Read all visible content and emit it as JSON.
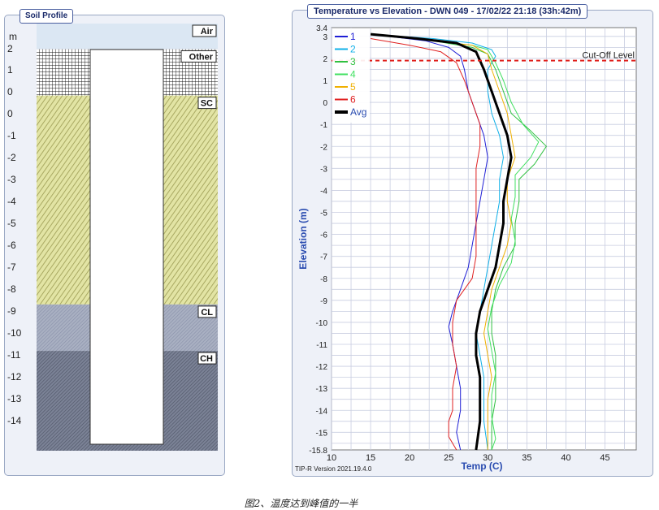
{
  "left_panel": {
    "title": "Soil Profile",
    "unit": "m",
    "layers": [
      {
        "name": "Air",
        "top": 3.4,
        "bottom": 2.3,
        "fill": "air"
      },
      {
        "name": "Other",
        "top": 2.3,
        "bottom": 0.3,
        "fill": "grid"
      },
      {
        "name": "SC",
        "top": 0.3,
        "bottom": -8.7,
        "fill": "sc"
      },
      {
        "name": "CL",
        "top": -8.7,
        "bottom": -10.7,
        "fill": "cl"
      },
      {
        "name": "CH",
        "top": -10.7,
        "bottom": -15.0,
        "fill": "ch"
      }
    ],
    "tick_labels": [
      "2",
      "1",
      "0",
      "0",
      "-1",
      "-2",
      "-3",
      "-4",
      "-5",
      "-6",
      "-7",
      "-8",
      "-9",
      "-10",
      "-11",
      "-12",
      "-13",
      "-14"
    ]
  },
  "right_panel": {
    "title": "Temperature vs Elevation - DWN 049 - 17/02/22 21:18 (33h:42m)",
    "version": "TIP-R Version 2021.19.4.0"
  },
  "chart_data": {
    "type": "line",
    "title": "Temperature vs Elevation - DWN 049 - 17/02/22 21:18 (33h:42m)",
    "xlabel": "Temp (C)",
    "ylabel": "Elevation (m)",
    "xlim": [
      10,
      49
    ],
    "ylim": [
      -15.8,
      3.4
    ],
    "xticks": [
      10,
      15,
      20,
      25,
      30,
      35,
      40,
      45
    ],
    "yticks": [
      3.4,
      3,
      2,
      1,
      0,
      -1,
      -2,
      -3,
      -4,
      -5,
      -6,
      -7,
      -8,
      -9,
      -10,
      -11,
      -12,
      -13,
      -14,
      -15,
      -15.8
    ],
    "ytick_labels": [
      "3.4",
      "3",
      "2",
      "1",
      "0",
      "-1",
      "-2",
      "-3",
      "-4",
      "-5",
      "-6",
      "-7",
      "-8",
      "-9",
      "-10",
      "-11",
      "-12",
      "-13",
      "-14",
      "-15",
      "-15.8"
    ],
    "grid": true,
    "legend_position": "top-left",
    "cutoff": {
      "label": "Cut-Off Level",
      "y": 1.9,
      "color": "#e0201c"
    },
    "series": [
      {
        "name": "1",
        "color": "#1f1fd6",
        "width": 1,
        "points": [
          [
            15,
            3.1
          ],
          [
            22,
            2.8
          ],
          [
            25,
            2.5
          ],
          [
            26.5,
            2.1
          ],
          [
            27,
            1.5
          ],
          [
            27.5,
            0.5
          ],
          [
            28.5,
            -0.5
          ],
          [
            29.5,
            -1.5
          ],
          [
            30,
            -2.5
          ],
          [
            29.5,
            -3.5
          ],
          [
            29,
            -4.5
          ],
          [
            28.5,
            -5.5
          ],
          [
            28,
            -6.5
          ],
          [
            27.5,
            -7.5
          ],
          [
            26.5,
            -8.5
          ],
          [
            25.5,
            -9.5
          ],
          [
            25,
            -10.2
          ],
          [
            25.5,
            -11
          ],
          [
            26,
            -12
          ],
          [
            26.5,
            -13
          ],
          [
            26.5,
            -14
          ],
          [
            26,
            -15
          ],
          [
            26.5,
            -15.8
          ]
        ]
      },
      {
        "name": "2",
        "color": "#10b0e8",
        "width": 1,
        "points": [
          [
            15,
            3.1
          ],
          [
            23,
            2.9
          ],
          [
            28,
            2.7
          ],
          [
            30.5,
            2.4
          ],
          [
            31,
            2.1
          ],
          [
            30,
            1.5
          ],
          [
            30,
            0.5
          ],
          [
            30.5,
            -0.5
          ],
          [
            31.5,
            -1.5
          ],
          [
            32,
            -2.5
          ],
          [
            31.5,
            -3.5
          ],
          [
            31.5,
            -4.5
          ],
          [
            31,
            -5.5
          ],
          [
            30.5,
            -6.5
          ],
          [
            30,
            -7.5
          ],
          [
            29.5,
            -8.5
          ],
          [
            29,
            -9.5
          ],
          [
            28.5,
            -10.5
          ],
          [
            29,
            -11.5
          ],
          [
            29.5,
            -12.5
          ],
          [
            29.5,
            -13.5
          ],
          [
            29.5,
            -14.5
          ],
          [
            30,
            -15.8
          ]
        ]
      },
      {
        "name": "3",
        "color": "#30c040",
        "width": 1,
        "points": [
          [
            15,
            3.1
          ],
          [
            23,
            2.8
          ],
          [
            28,
            2.5
          ],
          [
            30,
            2.2
          ],
          [
            31,
            1.5
          ],
          [
            32,
            0.5
          ],
          [
            33,
            -0.5
          ],
          [
            35.5,
            -1.3
          ],
          [
            37.5,
            -2
          ],
          [
            36,
            -2.8
          ],
          [
            34,
            -3.5
          ],
          [
            34,
            -4.5
          ],
          [
            33.5,
            -5.5
          ],
          [
            33.5,
            -6.5
          ],
          [
            32,
            -7.5
          ],
          [
            31,
            -8.5
          ],
          [
            30.5,
            -9.5
          ],
          [
            30.5,
            -10.5
          ],
          [
            31,
            -11.5
          ],
          [
            31,
            -12.5
          ],
          [
            31,
            -13.5
          ],
          [
            30.5,
            -14.5
          ],
          [
            30.5,
            -15.8
          ]
        ]
      },
      {
        "name": "4",
        "color": "#40e060",
        "width": 1,
        "points": [
          [
            15,
            3.1
          ],
          [
            23,
            2.8
          ],
          [
            28,
            2.6
          ],
          [
            30,
            2.4
          ],
          [
            31,
            1.8
          ],
          [
            32,
            1
          ],
          [
            33,
            0
          ],
          [
            34.5,
            -1
          ],
          [
            36.5,
            -1.8
          ],
          [
            35.5,
            -2.5
          ],
          [
            33.5,
            -3.3
          ],
          [
            33.5,
            -4.3
          ],
          [
            33,
            -5.3
          ],
          [
            33.5,
            -6.3
          ],
          [
            33,
            -7.3
          ],
          [
            31.5,
            -8.3
          ],
          [
            30.5,
            -9.3
          ],
          [
            30,
            -10.3
          ],
          [
            30.5,
            -11.3
          ],
          [
            31,
            -12.3
          ],
          [
            30.5,
            -13.3
          ],
          [
            30.5,
            -14.3
          ],
          [
            31,
            -15.3
          ],
          [
            30.5,
            -15.8
          ]
        ]
      },
      {
        "name": "5",
        "color": "#f0b000",
        "width": 1,
        "points": [
          [
            15,
            3.1
          ],
          [
            23,
            2.8
          ],
          [
            28,
            2.6
          ],
          [
            30,
            2.2
          ],
          [
            30.5,
            1.5
          ],
          [
            31.5,
            0.5
          ],
          [
            32.5,
            -0.5
          ],
          [
            33,
            -1.5
          ],
          [
            33.5,
            -2.5
          ],
          [
            32.5,
            -3.5
          ],
          [
            32.5,
            -4.5
          ],
          [
            33,
            -5.5
          ],
          [
            32.5,
            -6.5
          ],
          [
            31.5,
            -7.5
          ],
          [
            30.5,
            -8.5
          ],
          [
            30,
            -9.5
          ],
          [
            29.5,
            -10.5
          ],
          [
            30,
            -11.5
          ],
          [
            30.5,
            -12.5
          ],
          [
            30,
            -13.5
          ],
          [
            30,
            -14.5
          ],
          [
            30,
            -15.8
          ]
        ]
      },
      {
        "name": "6",
        "color": "#e02020",
        "width": 1,
        "points": [
          [
            15,
            2.9
          ],
          [
            20,
            2.6
          ],
          [
            24,
            2.3
          ],
          [
            26,
            1.8
          ],
          [
            27,
            1
          ],
          [
            28,
            0
          ],
          [
            29,
            -1
          ],
          [
            29,
            -2
          ],
          [
            28.5,
            -3
          ],
          [
            28.5,
            -4
          ],
          [
            28.5,
            -5
          ],
          [
            28.5,
            -6
          ],
          [
            28.5,
            -7
          ],
          [
            28,
            -8
          ],
          [
            27,
            -8.5
          ],
          [
            26,
            -9
          ],
          [
            25.5,
            -10
          ],
          [
            25.5,
            -11
          ],
          [
            26,
            -12
          ],
          [
            25.5,
            -13
          ],
          [
            25.5,
            -14
          ],
          [
            25,
            -14.5
          ],
          [
            25,
            -15.2
          ],
          [
            26,
            -15.8
          ]
        ]
      },
      {
        "name": "Avg",
        "color": "#000000",
        "width": 3,
        "points": [
          [
            15,
            3.1
          ],
          [
            21,
            2.9
          ],
          [
            26,
            2.7
          ],
          [
            28.5,
            2.3
          ],
          [
            29.5,
            1.5
          ],
          [
            30.5,
            0.5
          ],
          [
            31.5,
            -0.5
          ],
          [
            32.5,
            -1.5
          ],
          [
            33,
            -2.5
          ],
          [
            32.5,
            -3.5
          ],
          [
            32,
            -4.5
          ],
          [
            32,
            -5.5
          ],
          [
            31.5,
            -6.5
          ],
          [
            31,
            -7.5
          ],
          [
            30,
            -8.5
          ],
          [
            29,
            -9.5
          ],
          [
            28.5,
            -10.5
          ],
          [
            28.5,
            -11.5
          ],
          [
            29,
            -12.5
          ],
          [
            29,
            -13.5
          ],
          [
            29,
            -14.5
          ],
          [
            28.5,
            -15.8
          ]
        ]
      }
    ]
  },
  "caption": {
    "figure": "图2、温度达到峰值的一半"
  }
}
